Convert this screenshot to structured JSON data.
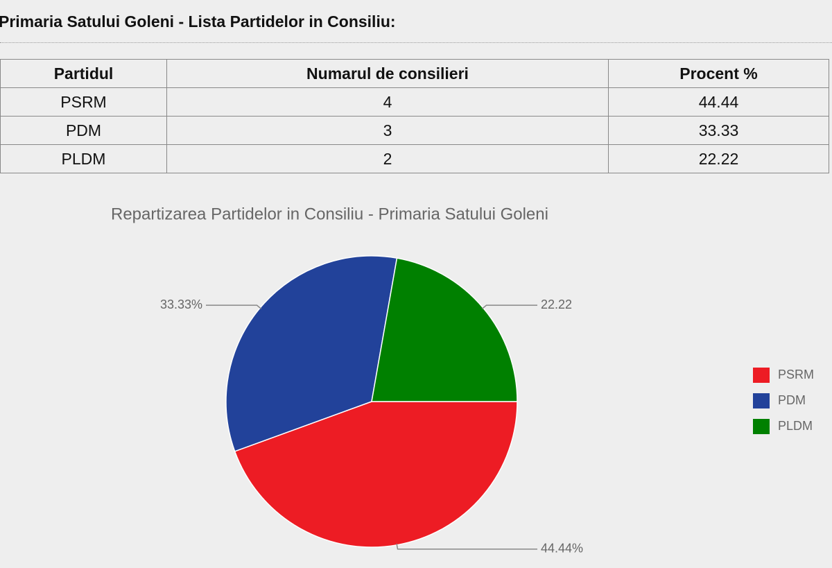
{
  "header": {
    "title": "Primaria Satului Goleni - Lista Partidelor in Consiliu:"
  },
  "table": {
    "headers": [
      "Partidul",
      "Numarul de consilieri",
      "Procent %"
    ],
    "rows": [
      [
        "PSRM",
        "4",
        "44.44"
      ],
      [
        "PDM",
        "3",
        "33.33"
      ],
      [
        "PLDM",
        "2",
        "22.22"
      ]
    ]
  },
  "chart_data": {
    "type": "pie",
    "title": "Repartizarea Partidelor in Consiliu - Primaria Satului Goleni",
    "categories": [
      "PSRM",
      "PDM",
      "PLDM"
    ],
    "values": [
      44.44,
      33.33,
      22.22
    ],
    "value_labels": [
      "44.44%",
      "33.33%",
      "22.22"
    ],
    "colors": [
      "#ed1c24",
      "#22429a",
      "#008000"
    ],
    "legend": "right"
  }
}
